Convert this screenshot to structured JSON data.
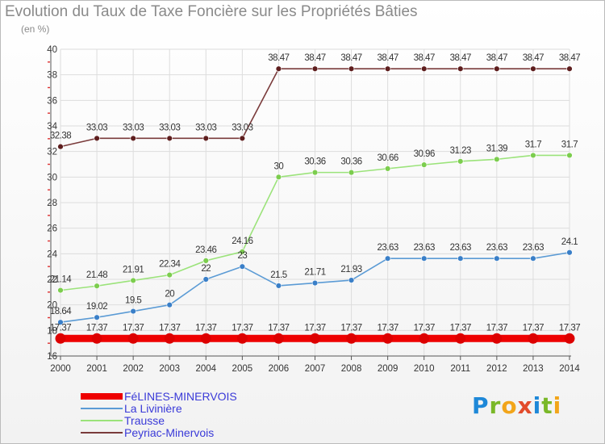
{
  "title": "Evolution du Taux de Taxe Foncière sur les Propriétés Bâties",
  "unit": "(en %)",
  "logo": {
    "text": "Proxiti",
    "letter_colors": [
      "#1e88d8",
      "#7ab828",
      "#f2a51a",
      "#e24b2b",
      "#1e88d8",
      "#7ab828",
      "#f2a51a"
    ]
  },
  "chart_data": {
    "type": "line",
    "title": "Evolution du Taux de Taxe Foncière sur les Propriétés Bâties",
    "ylabel": "(en %)",
    "x": [
      "2000",
      "2001",
      "2002",
      "2003",
      "2004",
      "2005",
      "2006",
      "2007",
      "2008",
      "2009",
      "2010",
      "2011",
      "2012",
      "2013",
      "2014"
    ],
    "ylim": [
      16,
      40
    ],
    "yticks": [
      16,
      18,
      20,
      22,
      24,
      26,
      28,
      30,
      32,
      34,
      36,
      38,
      40
    ],
    "grid": true,
    "legend_position": "bottom-left",
    "series": [
      {
        "name": "FéLINES-MINERVOIS",
        "color": "#ee0000",
        "point_color": "#dd0000",
        "values": [
          17.37,
          17.37,
          17.37,
          17.37,
          17.37,
          17.37,
          17.37,
          17.37,
          17.37,
          17.37,
          17.37,
          17.37,
          17.37,
          17.37,
          17.37
        ],
        "labels": [
          "17.37",
          "17.37",
          "17.37",
          "17.37",
          "17.37",
          "17.37",
          "17.37",
          "17.37",
          "17.37",
          "17.37",
          "17.37",
          "17.37",
          "17.37",
          "17.37",
          "17.37"
        ]
      },
      {
        "name": "La Livinière",
        "color": "#5b9bd5",
        "point_color": "#3a7fc8",
        "values": [
          18.64,
          19.02,
          19.5,
          20,
          22,
          23,
          21.5,
          21.71,
          21.93,
          23.63,
          23.63,
          23.63,
          23.63,
          23.63,
          24.1
        ],
        "labels": [
          "18.64",
          "19.02",
          "19.5",
          "20",
          "22",
          "23",
          "21.5",
          "21.71",
          "21.93",
          "23.63",
          "23.63",
          "23.63",
          "23.63",
          "23.63",
          "24.1"
        ]
      },
      {
        "name": "Trausse",
        "color": "#9be37a",
        "point_color": "#7ccd4e",
        "values": [
          21.14,
          21.48,
          21.91,
          22.34,
          23.46,
          24.16,
          30,
          30.36,
          30.36,
          30.66,
          30.96,
          31.23,
          31.39,
          31.7,
          31.7
        ],
        "labels": [
          "21.14",
          "21.48",
          "21.91",
          "22.34",
          "23.46",
          "24.16",
          "30",
          "30.36",
          "30.36",
          "30.66",
          "30.96",
          "31.23",
          "31.39",
          "31.7",
          "31.7"
        ]
      },
      {
        "name": "Peyriac-Minervois",
        "color": "#7a3b3b",
        "point_color": "#5e1e1e",
        "values": [
          32.38,
          33.03,
          33.03,
          33.03,
          33.03,
          33.03,
          38.47,
          38.47,
          38.47,
          38.47,
          38.47,
          38.47,
          38.47,
          38.47,
          38.47
        ],
        "labels": [
          "32.38",
          "33.03",
          "33.03",
          "33.03",
          "33.03",
          "33.03",
          "38.47",
          "38.47",
          "38.47",
          "38.47",
          "38.47",
          "38.47",
          "38.47",
          "38.47",
          "38.47"
        ]
      }
    ]
  }
}
